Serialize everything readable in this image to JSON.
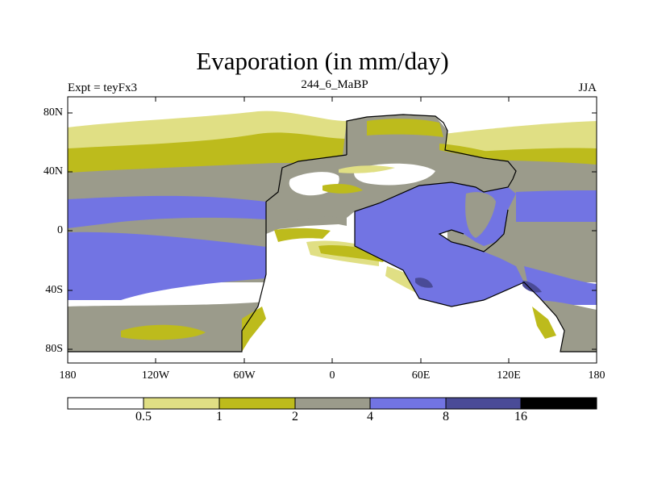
{
  "title": "Evaporation (in mm/day)",
  "left_string": "Expt = teyFx3",
  "center_string": "244_6_MaBP",
  "right_string": "JJA",
  "lat_labels": [
    "80N",
    "40N",
    "0",
    "40S",
    "80S"
  ],
  "lon_labels": [
    "180",
    "120W",
    "60W",
    "0",
    "60E",
    "120E",
    "180"
  ],
  "colorbar": {
    "labels": [
      "0.5",
      "1",
      "2",
      "4",
      "8",
      "16"
    ],
    "colors": [
      "#ffffff",
      "#e0df84",
      "#bdbb1c",
      "#9b9b8b",
      "#7274e3",
      "#4a4b97",
      "#000000"
    ]
  }
}
